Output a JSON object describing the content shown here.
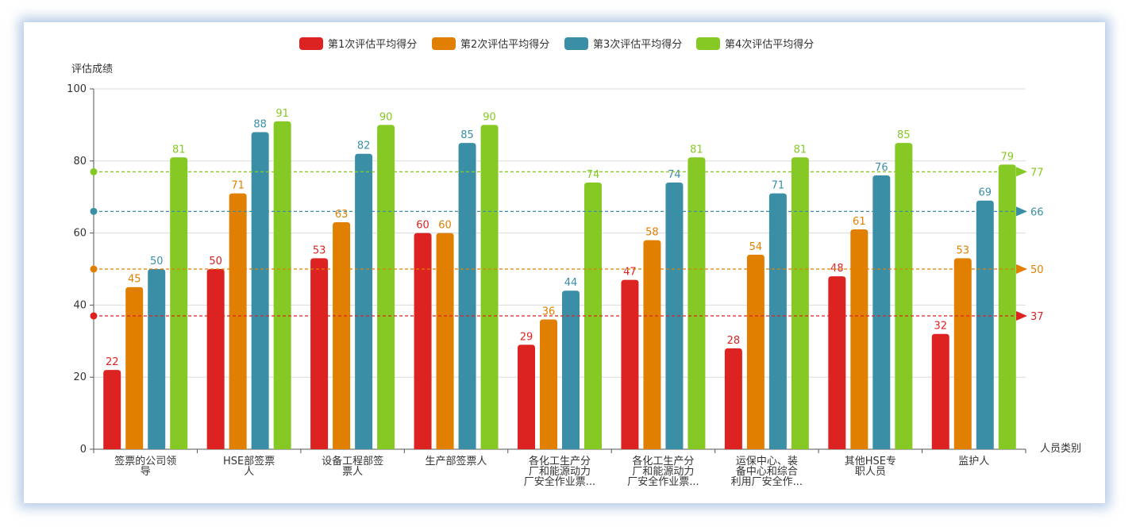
{
  "chart_data": {
    "type": "bar",
    "ylabel": "评估成绩",
    "xlabel": "人员类别",
    "ylim": [
      0,
      100
    ],
    "yticks": [
      0,
      20,
      40,
      60,
      80,
      100
    ],
    "grid": true,
    "legend_position": "top-center",
    "categories": [
      [
        "签票的公司领",
        "导"
      ],
      [
        "HSE部签票",
        "人"
      ],
      [
        "设备工程部签",
        "票人"
      ],
      [
        "生产部签票人"
      ],
      [
        "各化工生产分",
        "厂和能源动力",
        "厂安全作业票..."
      ],
      [
        "各化工生产分",
        "厂和能源动力",
        "厂安全作业票..."
      ],
      [
        "运保中心、装",
        "备中心和综合",
        "利用厂安全作..."
      ],
      [
        "其他HSE专",
        "职人员"
      ],
      [
        "监护人"
      ]
    ],
    "series": [
      {
        "name": "第1次评估平均得分",
        "color": "#dd2222",
        "values": [
          22,
          50,
          53,
          60,
          29,
          47,
          28,
          48,
          32
        ],
        "average": 37
      },
      {
        "name": "第2次评估平均得分",
        "color": "#e07f00",
        "values": [
          45,
          71,
          63,
          60,
          36,
          58,
          54,
          61,
          53
        ],
        "average": 50
      },
      {
        "name": "第3次评估平均得分",
        "color": "#3a8fa6",
        "values": [
          50,
          88,
          82,
          85,
          44,
          74,
          71,
          76,
          69
        ],
        "average": 66
      },
      {
        "name": "第4次评估平均得分",
        "color": "#86c924",
        "values": [
          81,
          91,
          90,
          90,
          74,
          81,
          81,
          85,
          79
        ],
        "average": 77
      }
    ]
  }
}
